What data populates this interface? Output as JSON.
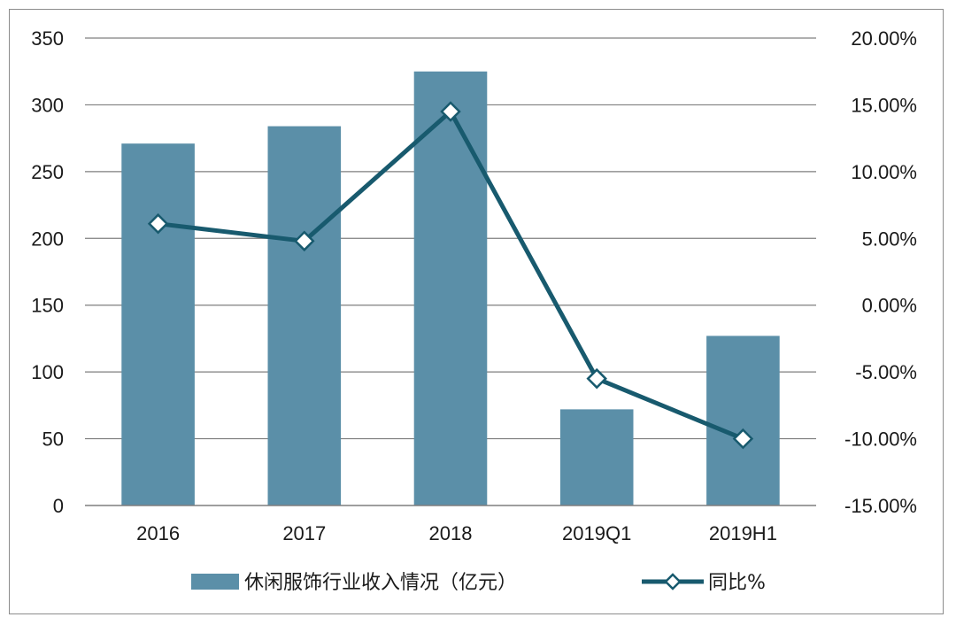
{
  "chart_data": {
    "type": "bar",
    "categories": [
      "2016",
      "2017",
      "2018",
      "2019Q1",
      "2019H1"
    ],
    "series": [
      {
        "name": "休闲服饰行业收入情况（亿元）",
        "type": "bar",
        "axis": "left",
        "values": [
          271,
          284,
          325,
          72,
          127
        ]
      },
      {
        "name": "同比%",
        "type": "line",
        "axis": "right",
        "values": [
          0.061,
          0.048,
          0.145,
          -0.055,
          -0.1
        ]
      }
    ],
    "y_left": {
      "ylim": [
        0,
        350
      ],
      "ticks": [
        0,
        50,
        100,
        150,
        200,
        250,
        300,
        350
      ],
      "tick_labels": [
        "0",
        "50",
        "100",
        "150",
        "200",
        "250",
        "300",
        "350"
      ]
    },
    "y_right": {
      "ylim": [
        -0.15,
        0.2
      ],
      "ticks": [
        -0.15,
        -0.1,
        -0.05,
        0.0,
        0.05,
        0.1,
        0.15,
        0.2
      ],
      "tick_labels": [
        "-15.00%",
        "-10.00%",
        "-5.00%",
        "0.00%",
        "5.00%",
        "10.00%",
        "15.00%",
        "20.00%"
      ]
    },
    "grid": true,
    "legend": "bottom",
    "colors": {
      "bar": "#5b8fa8",
      "line": "#185a6e",
      "grid": "#7f7f7f",
      "marker_fill": "#ffffff"
    }
  }
}
